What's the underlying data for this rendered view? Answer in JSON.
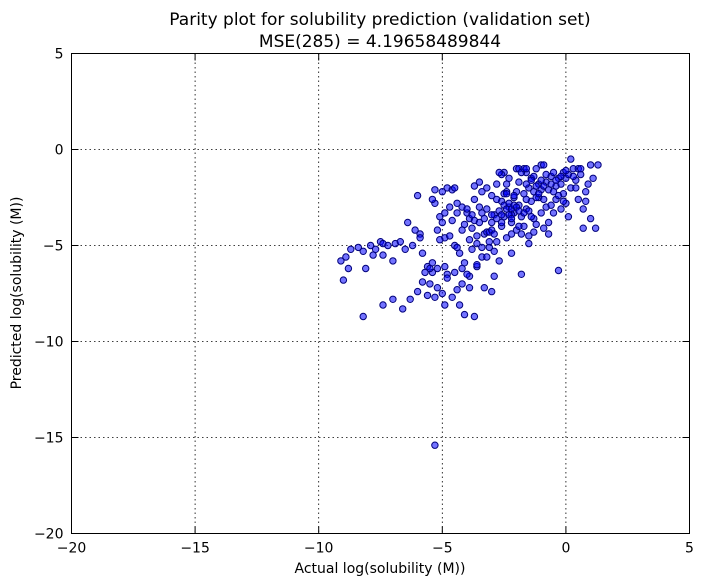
{
  "chart_data": {
    "type": "scatter",
    "title": "Parity plot for solubility prediction (validation set)",
    "subtitle": "MSE(285) = 4.19658489844",
    "xlabel": "Actual log(solubility (M))",
    "ylabel": "Predicted log(solubility (M))",
    "xlim": [
      -20,
      5
    ],
    "ylim": [
      -20,
      5
    ],
    "xticks": [
      "−20",
      "−15",
      "−10",
      "−5",
      "0",
      "5"
    ],
    "yticks": [
      "−20",
      "−15",
      "−10",
      "−5",
      "0",
      "5"
    ],
    "xtick_values": [
      -20,
      -15,
      -10,
      -5,
      0,
      5
    ],
    "ytick_values": [
      -20,
      -15,
      -10,
      -5,
      0,
      5
    ],
    "grid": true,
    "marker_color": "#0000ff",
    "series": [
      {
        "points": [
          [
            -9.1,
            -5.8
          ],
          [
            -9.0,
            -6.8
          ],
          [
            -8.8,
            -6.2
          ],
          [
            -8.7,
            -5.2
          ],
          [
            -8.4,
            -5.1
          ],
          [
            -8.2,
            -5.3
          ],
          [
            -8.1,
            -6.2
          ],
          [
            -7.9,
            -5.0
          ],
          [
            -7.7,
            -5.2
          ],
          [
            -7.5,
            -4.8
          ],
          [
            -7.4,
            -4.9
          ],
          [
            -7.4,
            -5.5
          ],
          [
            -7.2,
            -5.0
          ],
          [
            -7.0,
            -5.8
          ],
          [
            -6.9,
            -4.9
          ],
          [
            -6.7,
            -4.8
          ],
          [
            -6.5,
            -5.2
          ],
          [
            -6.4,
            -3.8
          ],
          [
            -6.2,
            -5.0
          ],
          [
            -6.0,
            -2.4
          ],
          [
            -5.9,
            -4.4
          ],
          [
            -5.9,
            -4.6
          ],
          [
            -5.8,
            -5.4
          ],
          [
            -5.7,
            -6.4
          ],
          [
            -5.6,
            -6.1
          ],
          [
            -5.5,
            -7.0
          ],
          [
            -5.4,
            -5.9
          ],
          [
            -5.4,
            -6.4
          ],
          [
            -5.3,
            -2.1
          ],
          [
            -5.3,
            -2.8
          ],
          [
            -5.2,
            -4.2
          ],
          [
            -5.2,
            -6.2
          ],
          [
            -5.1,
            -3.5
          ],
          [
            -5.0,
            -2.2
          ],
          [
            -5.0,
            -3.8
          ],
          [
            -4.9,
            -4.6
          ],
          [
            -4.9,
            -6.1
          ],
          [
            -4.8,
            -2.0
          ],
          [
            -4.8,
            -6.5
          ],
          [
            -4.7,
            -3.0
          ],
          [
            -4.6,
            -2.1
          ],
          [
            -4.5,
            -5.0
          ],
          [
            -4.5,
            -6.4
          ],
          [
            -4.4,
            -2.8
          ],
          [
            -4.4,
            -3.3
          ],
          [
            -4.3,
            -5.4
          ],
          [
            -4.2,
            -3.0
          ],
          [
            -4.2,
            -6.2
          ],
          [
            -4.1,
            -3.9
          ],
          [
            -4.1,
            -5.9
          ],
          [
            -4.0,
            -3.3
          ],
          [
            -3.9,
            -6.6
          ],
          [
            -3.9,
            -3.6
          ],
          [
            -3.8,
            -4.1
          ],
          [
            -3.8,
            -5.2
          ],
          [
            -3.7,
            -3.7
          ],
          [
            -3.7,
            -2.6
          ],
          [
            -3.6,
            -6.1
          ],
          [
            -3.6,
            -4.5
          ],
          [
            -3.5,
            -3.0
          ],
          [
            -3.5,
            -1.7
          ],
          [
            -3.4,
            -5.6
          ],
          [
            -3.4,
            -3.3
          ],
          [
            -3.3,
            -4.4
          ],
          [
            -3.2,
            -2.0
          ],
          [
            -3.2,
            -3.1
          ],
          [
            -3.1,
            -5.1
          ],
          [
            -3.0,
            -3.8
          ],
          [
            -3.0,
            -2.4
          ],
          [
            -2.9,
            -6.6
          ],
          [
            -2.9,
            -3.4
          ],
          [
            -2.8,
            -4.8
          ],
          [
            -2.8,
            -1.8
          ],
          [
            -2.7,
            -3.2
          ],
          [
            -2.7,
            -5.8
          ],
          [
            -2.6,
            -2.7
          ],
          [
            -2.6,
            -4.0
          ],
          [
            -2.5,
            -1.2
          ],
          [
            -2.5,
            -3.5
          ],
          [
            -2.4,
            -4.6
          ],
          [
            -2.4,
            -2.2
          ],
          [
            -2.3,
            -3.0
          ],
          [
            -2.3,
            -1.5
          ],
          [
            -2.2,
            -3.8
          ],
          [
            -2.2,
            -5.4
          ],
          [
            -2.1,
            -2.5
          ],
          [
            -2.1,
            -3.3
          ],
          [
            -2.0,
            -1.0
          ],
          [
            -2.0,
            -4.2
          ],
          [
            -1.9,
            -2.9
          ],
          [
            -1.9,
            -1.7
          ],
          [
            -1.8,
            -3.5
          ],
          [
            -1.8,
            -6.5
          ],
          [
            -1.7,
            -2.3
          ],
          [
            -1.7,
            -4.0
          ],
          [
            -1.6,
            -1.2
          ],
          [
            -1.6,
            -3.1
          ],
          [
            -1.5,
            -2.0
          ],
          [
            -1.5,
            -4.5
          ],
          [
            -1.4,
            -2.7
          ],
          [
            -1.4,
            -1.5
          ],
          [
            -1.3,
            -3.6
          ],
          [
            -1.3,
            -2.2
          ],
          [
            -1.2,
            -1.0
          ],
          [
            -1.2,
            -3.9
          ],
          [
            -1.1,
            -2.5
          ],
          [
            -1.1,
            -1.8
          ],
          [
            -1.0,
            -3.3
          ],
          [
            -1.0,
            -0.8
          ],
          [
            -0.9,
            -2.6
          ],
          [
            -0.9,
            -4.1
          ],
          [
            -0.8,
            -1.7
          ],
          [
            -0.8,
            -3.0
          ],
          [
            -0.7,
            -2.1
          ],
          [
            -0.7,
            -3.8
          ],
          [
            -0.6,
            -1.4
          ],
          [
            -0.6,
            -2.9
          ],
          [
            -0.5,
            -2.2
          ],
          [
            -0.5,
            -3.3
          ],
          [
            -0.4,
            -1.9
          ],
          [
            -0.4,
            -2.6
          ],
          [
            -0.3,
            -1.5
          ],
          [
            -0.3,
            -6.3
          ],
          [
            -0.2,
            -3.1
          ],
          [
            -0.2,
            -1.8
          ],
          [
            -0.1,
            -2.3
          ],
          [
            -0.1,
            -1.2
          ],
          [
            0.0,
            -2.8
          ],
          [
            0.0,
            -1.5
          ],
          [
            0.1,
            -3.5
          ],
          [
            0.1,
            -1.3
          ],
          [
            0.2,
            -0.5
          ],
          [
            0.2,
            -2.0
          ],
          [
            0.3,
            -1.0
          ],
          [
            0.4,
            -1.6
          ],
          [
            0.5,
            -2.6
          ],
          [
            0.5,
            -1.0
          ],
          [
            0.6,
            -1.3
          ],
          [
            0.7,
            -3.1
          ],
          [
            0.7,
            -4.1
          ],
          [
            0.8,
            -2.2
          ],
          [
            0.9,
            -1.8
          ],
          [
            1.0,
            -3.6
          ],
          [
            1.0,
            -0.8
          ],
          [
            1.1,
            -1.5
          ],
          [
            1.2,
            -4.1
          ],
          [
            1.3,
            -0.8
          ],
          [
            -8.2,
            -8.7
          ],
          [
            -7.4,
            -8.1
          ],
          [
            -7.0,
            -7.8
          ],
          [
            -6.6,
            -8.3
          ],
          [
            -6.3,
            -7.8
          ],
          [
            -6.0,
            -7.4
          ],
          [
            -5.8,
            -6.9
          ],
          [
            -5.6,
            -7.6
          ],
          [
            -5.5,
            -6.2
          ],
          [
            -5.3,
            -7.7
          ],
          [
            -5.2,
            -7.2
          ],
          [
            -5.0,
            -7.5
          ],
          [
            -4.9,
            -8.1
          ],
          [
            -4.8,
            -6.7
          ],
          [
            -4.6,
            -7.7
          ],
          [
            -4.4,
            -7.3
          ],
          [
            -4.3,
            -8.1
          ],
          [
            -4.2,
            -7.0
          ],
          [
            -4.1,
            -8.6
          ],
          [
            -4.0,
            -6.5
          ],
          [
            -3.9,
            -7.2
          ],
          [
            -3.7,
            -8.7
          ],
          [
            -3.6,
            -6.0
          ],
          [
            -3.3,
            -7.2
          ],
          [
            -3.0,
            -7.4
          ],
          [
            -5.3,
            -15.4
          ],
          [
            -3.2,
            -4.3
          ],
          [
            -3.1,
            -4.3
          ],
          [
            -3.0,
            -4.2
          ],
          [
            -2.9,
            -4.4
          ],
          [
            -2.5,
            -2.9
          ],
          [
            -2.4,
            -3.1
          ],
          [
            -2.3,
            -2.8
          ],
          [
            -2.2,
            -3.1
          ],
          [
            -2.1,
            -2.9
          ],
          [
            -2.0,
            -3.0
          ],
          [
            -1.9,
            -1.0
          ],
          [
            -1.8,
            -1.2
          ],
          [
            -1.7,
            -1.0
          ],
          [
            -1.6,
            -1.0
          ],
          [
            -2.6,
            -1.3
          ],
          [
            -2.7,
            -1.2
          ],
          [
            -2.5,
            -2.3
          ],
          [
            -2.4,
            -2.3
          ],
          [
            -1.5,
            -3.2
          ],
          [
            -1.4,
            -3.5
          ],
          [
            -1.2,
            -2.5
          ],
          [
            -1.0,
            -1.6
          ],
          [
            -0.8,
            -1.3
          ],
          [
            -0.6,
            -1.8
          ],
          [
            -0.4,
            -1.6
          ],
          [
            -2.2,
            -3.4
          ],
          [
            -2.3,
            -3.4
          ],
          [
            -1.9,
            -4.0
          ],
          [
            -1.8,
            -4.4
          ],
          [
            -3.5,
            -3.8
          ],
          [
            -3.3,
            -3.6
          ],
          [
            -3.8,
            -3.4
          ],
          [
            -4.0,
            -3.1
          ],
          [
            -4.2,
            -4.2
          ],
          [
            -4.4,
            -5.1
          ],
          [
            -2.8,
            -3.6
          ],
          [
            -2.6,
            -3.8
          ],
          [
            -1.7,
            -3.3
          ],
          [
            -1.6,
            -2.6
          ],
          [
            -1.3,
            -1.4
          ],
          [
            -0.9,
            -0.8
          ],
          [
            -0.2,
            -1.4
          ],
          [
            0.3,
            -1.4
          ],
          [
            0.6,
            -1.0
          ],
          [
            0.0,
            -1.1
          ],
          [
            -0.5,
            -1.2
          ],
          [
            -1.0,
            -2.1
          ],
          [
            -1.1,
            -2.3
          ],
          [
            -2.0,
            -2.2
          ],
          [
            -2.1,
            -2.4
          ],
          [
            -3.6,
            -4.9
          ],
          [
            -3.4,
            -5.1
          ],
          [
            -3.2,
            -5.6
          ],
          [
            -2.9,
            -5.3
          ],
          [
            -4.6,
            -3.7
          ],
          [
            -4.9,
            -3.3
          ],
          [
            -5.1,
            -4.7
          ],
          [
            -4.7,
            -4.5
          ],
          [
            -3.9,
            -4.7
          ],
          [
            -3.1,
            -4.8
          ],
          [
            -2.2,
            -4.4
          ],
          [
            -1.5,
            -4.9
          ],
          [
            -1.3,
            -4.3
          ],
          [
            -0.7,
            -4.4
          ],
          [
            -2.8,
            -2.6
          ],
          [
            -1.6,
            -1.8
          ],
          [
            -1.2,
            -1.9
          ],
          [
            -0.3,
            -2.4
          ],
          [
            0.4,
            -2.0
          ],
          [
            0.8,
            -2.7
          ],
          [
            -3.4,
            -2.2
          ],
          [
            -3.0,
            -3.4
          ],
          [
            -2.6,
            -3.4
          ],
          [
            -2.2,
            -3.6
          ],
          [
            -1.9,
            -3.2
          ],
          [
            -3.7,
            -1.9
          ],
          [
            -2.4,
            -1.8
          ],
          [
            -1.4,
            -1.6
          ],
          [
            -0.9,
            -1.9
          ],
          [
            -0.1,
            -2.7
          ],
          [
            -4.5,
            -2.0
          ],
          [
            -5.4,
            -2.6
          ],
          [
            -6.1,
            -4.2
          ],
          [
            -7.8,
            -5.5
          ],
          [
            -8.9,
            -5.6
          ]
        ]
      }
    ]
  }
}
